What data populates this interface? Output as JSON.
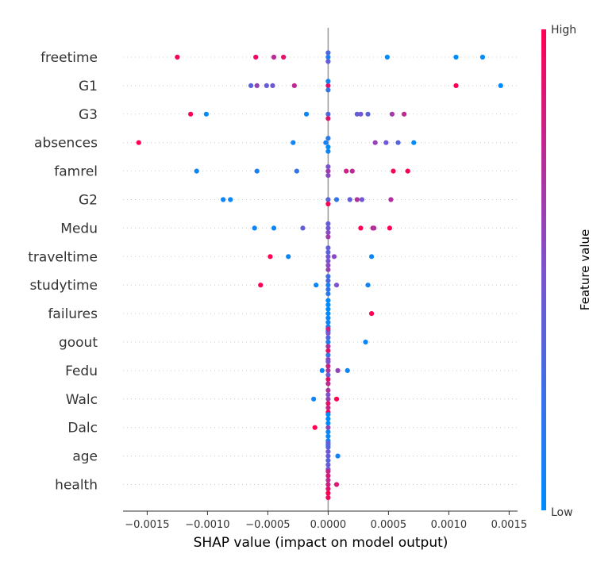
{
  "chart_data": {
    "type": "scatter",
    "subtype": "shap-beeswarm",
    "title": "",
    "xlabel": "SHAP value (impact on model output)",
    "ylabel": "",
    "xlim": [
      -0.0017,
      0.00157
    ],
    "x_ticks": [
      -0.0015,
      -0.001,
      -0.0005,
      0.0,
      0.0005,
      0.001,
      0.0015
    ],
    "x_tick_labels": [
      "−0.0015",
      "−0.0010",
      "−0.0005",
      "0.0000",
      "0.0005",
      "0.0010",
      "0.0015"
    ],
    "grid": false,
    "colorbar": {
      "title": "Feature value",
      "high_label": "High",
      "low_label": "Low",
      "low_color": "#008bfb",
      "high_color": "#ff0052"
    },
    "features": [
      {
        "name": "freetime",
        "points": [
          {
            "x": -0.00125,
            "v": 1.0
          },
          {
            "x": -0.0006,
            "v": 0.95
          },
          {
            "x": -0.00045,
            "v": 0.75
          },
          {
            "x": -0.00037,
            "v": 0.9
          },
          {
            "x": 0.0,
            "v": 0.1
          },
          {
            "x": 0.0,
            "v": 0.4
          },
          {
            "x": 0.0,
            "v": 0.3
          },
          {
            "x": 0.00049,
            "v": 0.0
          },
          {
            "x": 0.00106,
            "v": 0.0
          },
          {
            "x": 0.00128,
            "v": 0.0
          }
        ]
      },
      {
        "name": "G1",
        "points": [
          {
            "x": -0.00064,
            "v": 0.35
          },
          {
            "x": -0.00059,
            "v": 0.6
          },
          {
            "x": -0.00051,
            "v": 0.4
          },
          {
            "x": -0.00046,
            "v": 0.45
          },
          {
            "x": -0.00028,
            "v": 0.75
          },
          {
            "x": 0.0,
            "v": 0.9
          },
          {
            "x": 0.0,
            "v": 0.2
          },
          {
            "x": 0.0,
            "v": 0.05
          },
          {
            "x": 0.00106,
            "v": 1.0
          },
          {
            "x": 0.00143,
            "v": 0.0
          }
        ]
      },
      {
        "name": "G3",
        "points": [
          {
            "x": -0.00114,
            "v": 1.0
          },
          {
            "x": -0.00101,
            "v": 0.0
          },
          {
            "x": -0.00018,
            "v": 0.05
          },
          {
            "x": 0.0,
            "v": 0.3
          },
          {
            "x": 0.0,
            "v": 0.9
          },
          {
            "x": 0.00024,
            "v": 0.4
          },
          {
            "x": 0.00027,
            "v": 0.45
          },
          {
            "x": 0.00033,
            "v": 0.35
          },
          {
            "x": 0.00053,
            "v": 0.65
          },
          {
            "x": 0.00063,
            "v": 0.75
          }
        ]
      },
      {
        "name": "absences",
        "points": [
          {
            "x": -0.00157,
            "v": 1.0
          },
          {
            "x": -0.00029,
            "v": 0.05
          },
          {
            "x": -2e-05,
            "v": 0.1
          },
          {
            "x": 0.0,
            "v": 0.0
          },
          {
            "x": 0.0,
            "v": 0.15
          },
          {
            "x": 0.0,
            "v": 0.05
          },
          {
            "x": 0.00039,
            "v": 0.6
          },
          {
            "x": 0.00048,
            "v": 0.45
          },
          {
            "x": 0.00058,
            "v": 0.35
          },
          {
            "x": 0.00071,
            "v": 0.0
          }
        ]
      },
      {
        "name": "famrel",
        "points": [
          {
            "x": -0.00109,
            "v": 0.05
          },
          {
            "x": -0.00059,
            "v": 0.1
          },
          {
            "x": -0.00026,
            "v": 0.2
          },
          {
            "x": 0.0,
            "v": 0.65
          },
          {
            "x": 0.0,
            "v": 0.55
          },
          {
            "x": 0.0,
            "v": 0.5
          },
          {
            "x": 0.00015,
            "v": 0.8
          },
          {
            "x": 0.0002,
            "v": 0.75
          },
          {
            "x": 0.00054,
            "v": 1.0
          },
          {
            "x": 0.00066,
            "v": 1.0
          }
        ]
      },
      {
        "name": "G2",
        "points": [
          {
            "x": -0.00087,
            "v": 0.05
          },
          {
            "x": -0.00081,
            "v": 0.05
          },
          {
            "x": 0.0,
            "v": 0.35
          },
          {
            "x": 0.0,
            "v": 1.0
          },
          {
            "x": 7e-05,
            "v": 0.2
          },
          {
            "x": 0.00018,
            "v": 0.4
          },
          {
            "x": 0.00024,
            "v": 0.7
          },
          {
            "x": 0.00028,
            "v": 0.45
          },
          {
            "x": 0.00052,
            "v": 0.7
          }
        ]
      },
      {
        "name": "Medu",
        "points": [
          {
            "x": -0.00061,
            "v": 0.05
          },
          {
            "x": -0.00045,
            "v": 0.05
          },
          {
            "x": -0.00021,
            "v": 0.4
          },
          {
            "x": 0.0,
            "v": 0.45
          },
          {
            "x": 0.0,
            "v": 0.55
          },
          {
            "x": 0.0,
            "v": 0.4
          },
          {
            "x": 0.0,
            "v": 0.65
          },
          {
            "x": 0.00027,
            "v": 1.0
          },
          {
            "x": 0.00037,
            "v": 0.8
          },
          {
            "x": 0.00038,
            "v": 0.7
          },
          {
            "x": 0.00051,
            "v": 1.0
          }
        ]
      },
      {
        "name": "traveltime",
        "points": [
          {
            "x": -0.00048,
            "v": 1.0
          },
          {
            "x": -0.00033,
            "v": 0.05
          },
          {
            "x": 0.0,
            "v": 0.45
          },
          {
            "x": 0.0,
            "v": 0.5
          },
          {
            "x": 0.0,
            "v": 0.35
          },
          {
            "x": 0.0,
            "v": 0.55
          },
          {
            "x": 0.0,
            "v": 0.4
          },
          {
            "x": 0.0,
            "v": 0.6
          },
          {
            "x": 5e-05,
            "v": 0.55
          },
          {
            "x": 0.00036,
            "v": 0.05
          }
        ]
      },
      {
        "name": "studytime",
        "points": [
          {
            "x": -0.00056,
            "v": 1.0
          },
          {
            "x": -0.0001,
            "v": 0.05
          },
          {
            "x": 0.0,
            "v": 0.1
          },
          {
            "x": 0.0,
            "v": 0.2
          },
          {
            "x": 0.0,
            "v": 0.3
          },
          {
            "x": 0.0,
            "v": 0.15
          },
          {
            "x": 0.0,
            "v": 0.25
          },
          {
            "x": 7e-05,
            "v": 0.5
          },
          {
            "x": 0.00033,
            "v": 0.05
          }
        ]
      },
      {
        "name": "failures",
        "points": [
          {
            "x": 0.0,
            "v": 0.0
          },
          {
            "x": 0.0,
            "v": 0.05
          },
          {
            "x": 0.0,
            "v": 0.0
          },
          {
            "x": 0.0,
            "v": 0.05
          },
          {
            "x": 0.0,
            "v": 0.0
          },
          {
            "x": 0.0,
            "v": 0.05
          },
          {
            "x": 0.0,
            "v": 0.0
          },
          {
            "x": 0.0,
            "v": 0.05
          },
          {
            "x": 0.00036,
            "v": 1.0
          }
        ]
      },
      {
        "name": "goout",
        "points": [
          {
            "x": 0.0,
            "v": 0.1
          },
          {
            "x": 0.0,
            "v": 0.7
          },
          {
            "x": 0.0,
            "v": 0.3
          },
          {
            "x": 0.0,
            "v": 0.9
          },
          {
            "x": 0.0,
            "v": 0.5
          },
          {
            "x": 0.0,
            "v": 0.2
          },
          {
            "x": 0.0,
            "v": 0.8
          },
          {
            "x": 0.0,
            "v": 0.6
          },
          {
            "x": 0.00031,
            "v": 0.05
          }
        ]
      },
      {
        "name": "Fedu",
        "points": [
          {
            "x": -5e-05,
            "v": 0.05
          },
          {
            "x": 0.0,
            "v": 0.7
          },
          {
            "x": 0.0,
            "v": 0.4
          },
          {
            "x": 0.0,
            "v": 0.8
          },
          {
            "x": 0.0,
            "v": 0.9
          },
          {
            "x": 0.0,
            "v": 0.5
          },
          {
            "x": 0.0,
            "v": 0.75
          },
          {
            "x": 8e-05,
            "v": 0.6
          },
          {
            "x": 0.00016,
            "v": 0.05
          }
        ]
      },
      {
        "name": "Walc",
        "points": [
          {
            "x": -0.00012,
            "v": 0.05
          },
          {
            "x": 0.0,
            "v": 0.6
          },
          {
            "x": 0.0,
            "v": 0.9
          },
          {
            "x": 0.0,
            "v": 0.5
          },
          {
            "x": 0.0,
            "v": 0.8
          },
          {
            "x": 0.0,
            "v": 0.7
          },
          {
            "x": 0.0,
            "v": 1.0
          },
          {
            "x": 7e-05,
            "v": 1.0
          }
        ]
      },
      {
        "name": "Dalc",
        "points": [
          {
            "x": -0.00011,
            "v": 1.0
          },
          {
            "x": 0.0,
            "v": 0.6
          },
          {
            "x": 0.0,
            "v": 0.05
          },
          {
            "x": 0.0,
            "v": 0.0
          },
          {
            "x": 0.0,
            "v": 0.05
          },
          {
            "x": 0.0,
            "v": 0.0
          },
          {
            "x": 0.0,
            "v": 0.05
          },
          {
            "x": 0.0,
            "v": 0.0
          },
          {
            "x": 0.0,
            "v": 0.05
          }
        ]
      },
      {
        "name": "age",
        "points": [
          {
            "x": 0.0,
            "v": 0.4
          },
          {
            "x": 0.0,
            "v": 0.35
          },
          {
            "x": 0.0,
            "v": 0.45
          },
          {
            "x": 0.0,
            "v": 0.4
          },
          {
            "x": 0.0,
            "v": 0.35
          },
          {
            "x": 0.0,
            "v": 0.45
          },
          {
            "x": 0.0,
            "v": 0.4
          },
          {
            "x": 8e-05,
            "v": 0.05
          }
        ]
      },
      {
        "name": "health",
        "points": [
          {
            "x": 0.0,
            "v": 0.8
          },
          {
            "x": 0.0,
            "v": 0.9
          },
          {
            "x": 0.0,
            "v": 0.75
          },
          {
            "x": 0.0,
            "v": 1.0
          },
          {
            "x": 0.0,
            "v": 0.85
          },
          {
            "x": 0.0,
            "v": 0.95
          },
          {
            "x": 0.0,
            "v": 0.8
          },
          {
            "x": 7e-05,
            "v": 0.85
          }
        ]
      }
    ]
  }
}
